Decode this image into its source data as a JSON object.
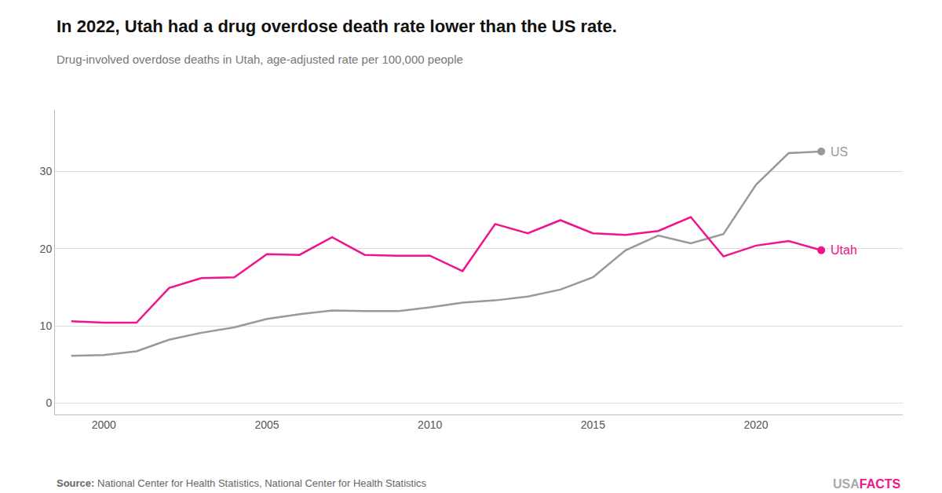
{
  "chart_data": {
    "type": "line",
    "title": "In 2022, Utah had a drug overdose death rate lower than the US rate.",
    "subtitle": "Drug-involved overdose deaths in Utah, age-adjusted rate per 100,000 people",
    "source_label": "Source:",
    "source": "National Center for Health Statistics, National Center for Health Statistics",
    "watermark": [
      "USA",
      "FACTS"
    ],
    "x": [
      1999,
      2000,
      2001,
      2002,
      2003,
      2004,
      2005,
      2006,
      2007,
      2008,
      2009,
      2010,
      2011,
      2012,
      2013,
      2014,
      2015,
      2016,
      2017,
      2018,
      2019,
      2020,
      2021,
      2022
    ],
    "series": [
      {
        "name": "US",
        "color": "#999999",
        "values": [
          6.1,
          6.2,
          6.7,
          8.2,
          9.1,
          9.8,
          10.9,
          11.5,
          12.0,
          11.9,
          11.9,
          12.4,
          13.0,
          13.3,
          13.8,
          14.7,
          16.3,
          19.8,
          21.7,
          20.7,
          21.9,
          28.3,
          32.4,
          32.6
        ]
      },
      {
        "name": "Utah",
        "color": "#f0148c",
        "values": [
          10.6,
          10.4,
          10.4,
          14.9,
          16.2,
          16.3,
          19.3,
          19.2,
          21.5,
          19.2,
          19.1,
          19.1,
          17.1,
          23.2,
          22.0,
          23.7,
          22.0,
          21.8,
          22.3,
          24.1,
          19.0,
          20.4,
          21.0,
          19.8
        ]
      }
    ],
    "xlim": [
      1998.5,
      2024.5
    ],
    "xticks": [
      2000,
      2005,
      2010,
      2015,
      2020
    ],
    "ylim": [
      -1.5,
      38
    ],
    "yticks": [
      0,
      10,
      20,
      30
    ],
    "grid": "y"
  }
}
